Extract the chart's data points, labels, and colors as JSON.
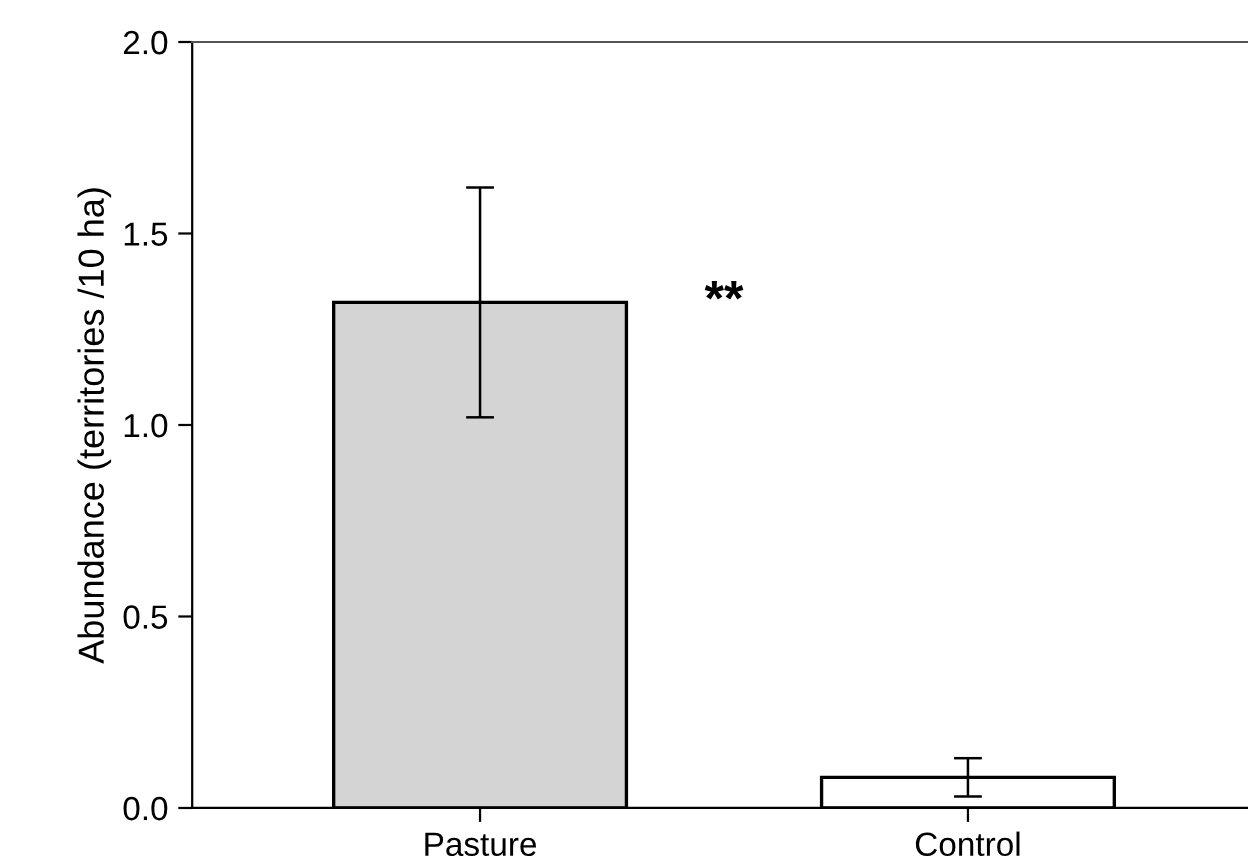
{
  "chart_data": {
    "type": "bar",
    "ylabel": "Abundance (territories /10 ha)",
    "categories": [
      "Pasture",
      "Control"
    ],
    "values": [
      1.32,
      0.08
    ],
    "errors": [
      0.3,
      0.05
    ],
    "colors": [
      "#d3d4d3",
      "#ffffff"
    ],
    "ylim": [
      0,
      2.0
    ],
    "yticks": [
      {
        "value": 0,
        "label": "0.0"
      },
      {
        "value": 0.5,
        "label": "0.5"
      },
      {
        "value": 1.0,
        "label": "1.0"
      },
      {
        "value": 1.5,
        "label": "1.5"
      },
      {
        "value": 2.0,
        "label": "2.0"
      }
    ],
    "grid": false,
    "annotations": [
      "**"
    ]
  }
}
